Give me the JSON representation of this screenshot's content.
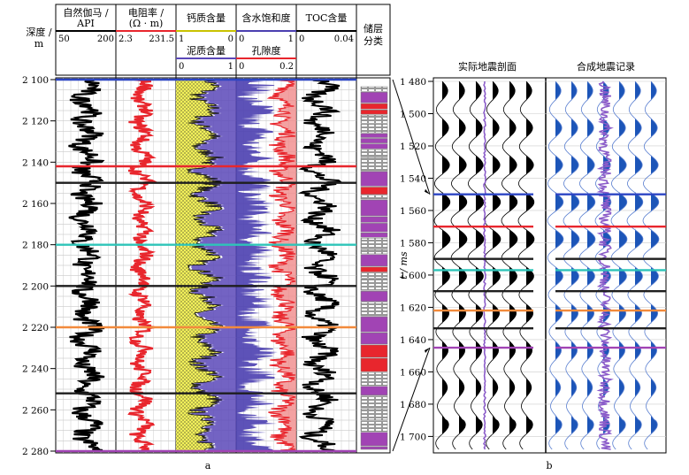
{
  "panel_a": {
    "label": "a",
    "header": {
      "depth": [
        "深度 /",
        "m"
      ],
      "track1": {
        "title": [
          "自然伽马 /",
          "API"
        ],
        "min": "50",
        "max": "200"
      },
      "track2": {
        "title": [
          "电阻率 /",
          "(Ω · m)"
        ],
        "min": "2.3",
        "max": "231.5"
      },
      "track3": {
        "title": "钙质含量",
        "min": "1",
        "max": "0",
        "sub_title": "泥质含量",
        "sub_min": "0",
        "sub_max": "1"
      },
      "track4": {
        "title": "含水饱和度",
        "min": "0",
        "max": "1",
        "sub_title": "孔隙度",
        "sub_min": "0",
        "sub_max": "0.2"
      },
      "track5": {
        "title": "TOC含量",
        "min": "0",
        "max": "0.04"
      },
      "track6": {
        "title": [
          "储层",
          "分类"
        ]
      }
    },
    "depth_ticks": [
      "2 100",
      "2 120",
      "2 140",
      "2 160",
      "2 180",
      "2 200",
      "2 220",
      "2 240",
      "2 260",
      "2 280"
    ],
    "colors": {
      "gr": "#000000",
      "res": "#e8262d",
      "calc": "#f2f05a",
      "shale": "#5a48b8",
      "sw": "#4b3fb0",
      "phi": "#e8262d",
      "toc": "#000000",
      "class1": "#a144b4",
      "class2": "#e8262d"
    }
  },
  "panel_b": {
    "label": "b",
    "titles": [
      "实际地震剖面",
      "合成地震记录"
    ],
    "ylabel": "t / ms",
    "time_ticks": [
      "1 480",
      "1 500",
      "1 520",
      "1 540",
      "1 560",
      "1 580",
      "1 600",
      "1 620",
      "1 640",
      "1 660",
      "1 680",
      "1 700"
    ],
    "colors": {
      "seismic": "#000000",
      "synthetic": "#1c55b8",
      "trace": "#8b5cc9"
    }
  },
  "horizons": [
    {
      "depth": 2100,
      "time": 1550,
      "color": "#2c45c4"
    },
    {
      "depth": 2142,
      "time": 1570,
      "color": "#e8262d"
    },
    {
      "depth": 2150,
      "time": 1590,
      "color": "#1e1e1e"
    },
    {
      "depth": 2180,
      "time": 1597,
      "color": "#2ec4b8"
    },
    {
      "depth": 2200,
      "time": 1610,
      "color": "#1e1e1e"
    },
    {
      "depth": 2220,
      "time": 1622,
      "color": "#f28a3c"
    },
    {
      "depth": 2252,
      "time": 1633,
      "color": "#1e1e1e"
    },
    {
      "depth": 2280,
      "time": 1645,
      "color": "#a144b4"
    }
  ]
}
